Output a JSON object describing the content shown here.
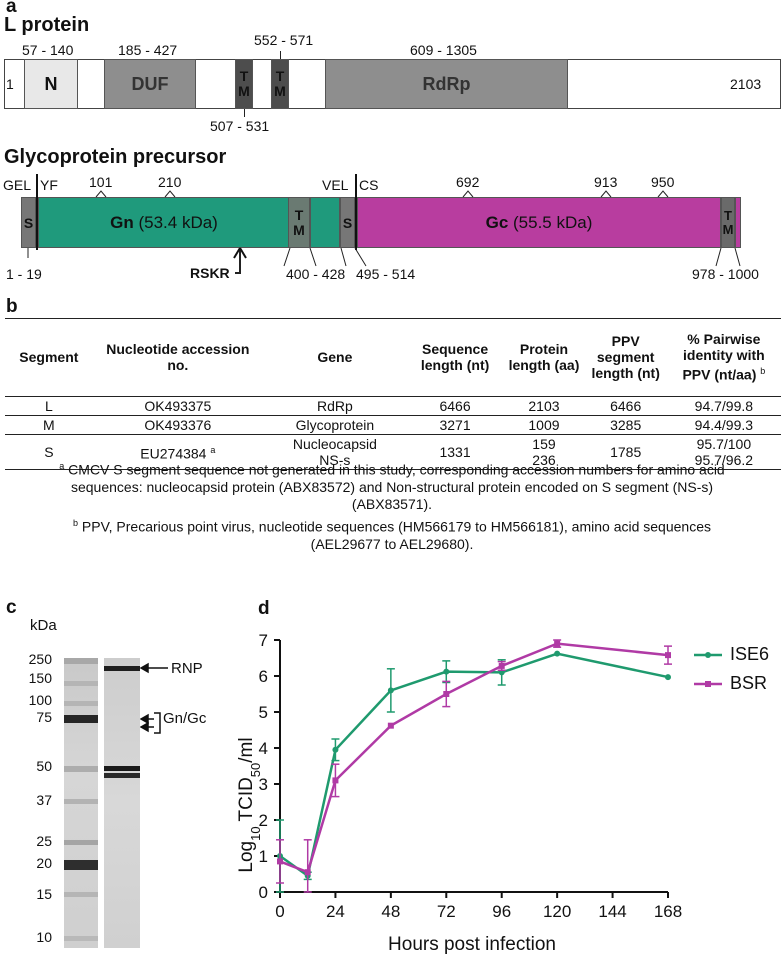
{
  "panel_a": {
    "letter": "a",
    "l_protein": {
      "title": "L protein",
      "start": "1",
      "end": "2103",
      "domains": {
        "n": {
          "label": "N",
          "range": "57 - 140"
        },
        "duf": {
          "label": "DUF",
          "range": "185 - 427"
        },
        "tm1": {
          "label": "TM",
          "range": "507 - 531"
        },
        "tm2": {
          "label": "TM",
          "range": "552 - 571"
        },
        "rdrp": {
          "label": "RdRp",
          "range": "609 - 1305"
        }
      }
    },
    "glycoprotein": {
      "title": "Glycoprotein precursor",
      "gel": "GEL",
      "yf": "YF",
      "vel": "VEL",
      "cs": "CS",
      "rskr": "RSKR",
      "signal1": {
        "label": "S",
        "range": "1 - 19"
      },
      "gn": {
        "label": "Gn",
        "mass": "(53.4 kDa)"
      },
      "tm1": {
        "label": "TM",
        "range": "400 - 428"
      },
      "signal2": {
        "label": "S",
        "range": "495 - 514"
      },
      "gc": {
        "label": "Gc",
        "mass": "(55.5 kDa)"
      },
      "tm2": {
        "label": "TM",
        "range": "978 - 1000"
      },
      "glyco_sites": [
        "101",
        "210",
        "692",
        "913",
        "950"
      ]
    }
  },
  "panel_b": {
    "letter": "b",
    "headers": [
      "Segment",
      "Nucleotide accession no.",
      "Gene",
      "Sequence length (nt)",
      "Protein length (aa)",
      "PPV segment length (nt)",
      "% Pairwise identity with PPV (nt/aa)"
    ],
    "header_note": "b",
    "rows": {
      "l": {
        "segment": "L",
        "accession": "OK493375",
        "gene": "RdRp",
        "seq_len": "6466",
        "prot_len": "2103",
        "ppv_len": "6466",
        "identity": "94.7/99.8"
      },
      "m": {
        "segment": "M",
        "accession": "OK493376",
        "gene": "Glycoprotein",
        "seq_len": "3271",
        "prot_len": "1009",
        "ppv_len": "3285",
        "identity": "94.4/99.3"
      },
      "s": {
        "segment": "S",
        "accession": "EU274384",
        "accession_note": "a",
        "genes": [
          "Nucleocapsid",
          "NS-s"
        ],
        "seq_len": "1331",
        "prot_lens": [
          "159",
          "236"
        ],
        "ppv_len": "1785",
        "identities": [
          "95.7/100",
          "95.7/96.2"
        ]
      }
    },
    "footnote_a": {
      "mark": "a",
      "lines": [
        "CMCV S segment sequence not generated in this study, corresponding accession numbers for amino acid",
        "sequences: nucleocapsid protein (ABX83572) and Non-structural protein encoded on S segment (NS-s)",
        "(ABX83571)."
      ]
    },
    "footnote_b": {
      "mark": "b",
      "lines": [
        "PPV, Precarious point virus, nucleotide sequences (HM566179 to HM566181), amino acid sequences",
        "(AEL29677 to AEL29680)."
      ]
    }
  },
  "panel_c": {
    "letter": "c",
    "unit": "kDa",
    "markers": [
      "250",
      "150",
      "100",
      "75",
      "50",
      "37",
      "25",
      "20",
      "15",
      "10"
    ],
    "rnp_label": "RNP",
    "gngc_label": "Gn/Gc"
  },
  "panel_d": {
    "letter": "d",
    "colors": {
      "ISE6": "#1f9a6e",
      "BSR": "#b03aa5"
    },
    "chart_data": {
      "type": "line",
      "xlabel": "Hours post infection",
      "ylabel": "Log10 TCID50/ml",
      "ylabel_parts": {
        "a": "Log",
        "b": "10",
        "c": " TCID",
        "d": "50",
        "e": "/ml"
      },
      "xlim": [
        0,
        168
      ],
      "ylim": [
        0,
        7
      ],
      "x_ticks": [
        0,
        24,
        48,
        72,
        96,
        120,
        144,
        168
      ],
      "y_ticks": [
        0,
        1,
        2,
        3,
        4,
        5,
        6,
        7
      ],
      "series": [
        {
          "name": "ISE6",
          "x": [
            0,
            12,
            24,
            48,
            72,
            96,
            120,
            168
          ],
          "y": [
            1.0,
            0.45,
            3.95,
            5.6,
            6.12,
            6.1,
            6.62,
            5.97
          ],
          "err": [
            1.0,
            0.1,
            0.3,
            0.6,
            0.3,
            0.35,
            0,
            0
          ]
        },
        {
          "name": "BSR",
          "x": [
            0,
            12,
            24,
            48,
            72,
            96,
            120,
            168
          ],
          "y": [
            0.85,
            0.55,
            3.1,
            4.62,
            5.5,
            6.28,
            6.9,
            6.58
          ],
          "err": [
            0.6,
            0.9,
            0.45,
            0,
            0.35,
            0.12,
            0.1,
            0.25
          ]
        }
      ]
    }
  }
}
